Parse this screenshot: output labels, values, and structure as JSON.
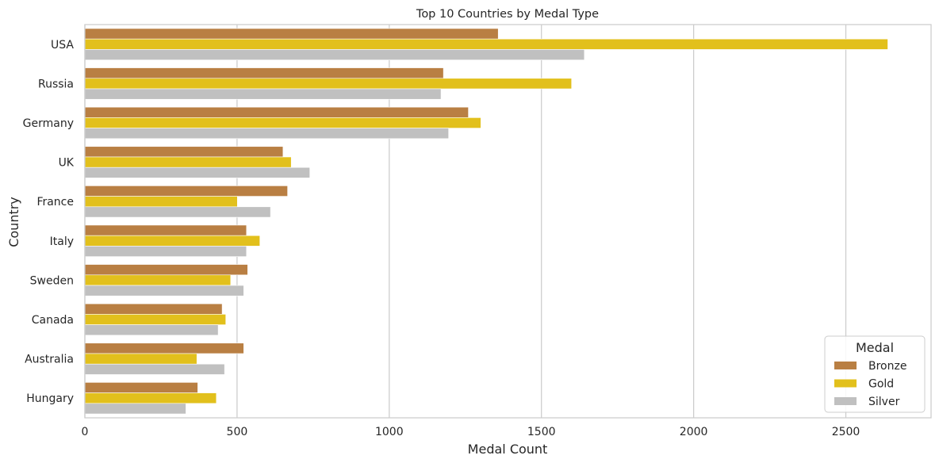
{
  "chart_data": {
    "type": "bar",
    "orientation": "horizontal",
    "title": "Top 10 Countries by Medal Type",
    "xlabel": "Medal Count",
    "ylabel": "Country",
    "xlim": [
      0,
      2780
    ],
    "xticks": [
      0,
      500,
      1000,
      1500,
      2000,
      2500
    ],
    "grid": "vertical",
    "categories": [
      "USA",
      "Russia",
      "Germany",
      "UK",
      "France",
      "Italy",
      "Sweden",
      "Canada",
      "Australia",
      "Hungary"
    ],
    "legend": {
      "title": "Medal",
      "placement": "lower-right"
    },
    "series": [
      {
        "name": "Bronze",
        "color": "#b97f43",
        "values": [
          1358,
          1178,
          1260,
          651,
          666,
          531,
          535,
          451,
          522,
          371
        ]
      },
      {
        "name": "Gold",
        "color": "#e2c01c",
        "values": [
          2638,
          1599,
          1301,
          678,
          501,
          575,
          479,
          463,
          368,
          432
        ]
      },
      {
        "name": "Silver",
        "color": "#c0c0c0",
        "values": [
          1641,
          1170,
          1195,
          739,
          610,
          531,
          522,
          438,
          459,
          332
        ]
      }
    ]
  }
}
